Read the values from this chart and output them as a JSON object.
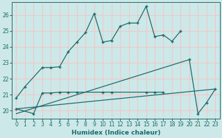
{
  "xlabel": "Humidex (Indice chaleur)",
  "xlim": [
    -0.5,
    23.5
  ],
  "ylim": [
    19.5,
    26.8
  ],
  "yticks": [
    20,
    21,
    22,
    23,
    24,
    25,
    26
  ],
  "xticks": [
    0,
    1,
    2,
    3,
    4,
    5,
    6,
    7,
    8,
    9,
    10,
    11,
    12,
    13,
    14,
    15,
    16,
    17,
    18,
    19,
    20,
    21,
    22,
    23
  ],
  "bg_color": "#cde8e8",
  "grid_color": "#f0c8c8",
  "line_color": "#1a6b6b",
  "line1_x": [
    0,
    1,
    3,
    4,
    5,
    6,
    7,
    8,
    9,
    10,
    11,
    12,
    13,
    14,
    15,
    16,
    17,
    18,
    19
  ],
  "line1_y": [
    20.8,
    21.5,
    22.7,
    22.7,
    22.75,
    23.7,
    24.3,
    24.9,
    26.1,
    24.3,
    24.4,
    25.3,
    25.5,
    25.5,
    26.55,
    24.65,
    24.75,
    24.35,
    25.0
  ],
  "line2_x": [
    0,
    2,
    3,
    4,
    5,
    6,
    7,
    10,
    11,
    15,
    16,
    17,
    20,
    21,
    22,
    23
  ],
  "line2_y": [
    20.1,
    19.8,
    21.1,
    21.1,
    21.15,
    21.15,
    21.15,
    21.15,
    21.15,
    21.15,
    21.15,
    21.15,
    23.2,
    19.8,
    20.5,
    21.35
  ],
  "line3_x": [
    0,
    23
  ],
  "line3_y": [
    20.1,
    21.35
  ],
  "line4_x": [
    0,
    20
  ],
  "line4_y": [
    19.8,
    23.2
  ]
}
